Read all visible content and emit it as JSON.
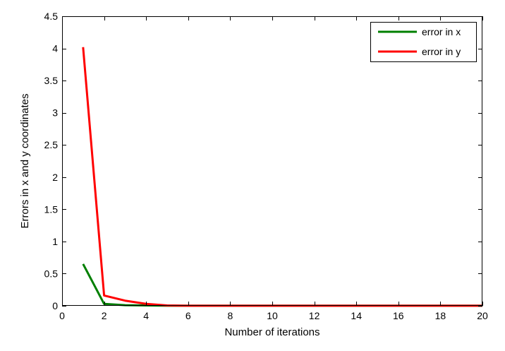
{
  "chart_data": {
    "type": "line",
    "title": "",
    "xlabel": "Number of iterations",
    "ylabel": "Errors in x and y coordinates",
    "xlim": [
      0,
      20
    ],
    "ylim": [
      0,
      4.5
    ],
    "xticks": [
      0,
      2,
      4,
      6,
      8,
      10,
      12,
      14,
      16,
      18,
      20
    ],
    "yticks": [
      0,
      0.5,
      1,
      1.5,
      2,
      2.5,
      3,
      3.5,
      4,
      4.5
    ],
    "xtick_labels": [
      "0",
      "2",
      "4",
      "6",
      "8",
      "10",
      "12",
      "14",
      "16",
      "18",
      "20"
    ],
    "ytick_labels": [
      "0",
      "0.5",
      "1",
      "1.5",
      "2",
      "2.5",
      "3",
      "3.5",
      "4",
      "4.5"
    ],
    "grid": false,
    "legend_position": "top-right",
    "x": [
      1,
      2,
      3,
      4,
      5,
      6,
      7,
      8,
      9,
      10,
      11,
      12,
      13,
      14,
      15,
      16,
      17,
      18,
      19,
      20
    ],
    "series": [
      {
        "name": "error in x",
        "color": "#007f00",
        "values": [
          0.65,
          0.03,
          0.01,
          0.005,
          0.002,
          0.001,
          0.001,
          0.001,
          0.001,
          0.001,
          0.001,
          0.001,
          0.001,
          0.001,
          0.001,
          0.001,
          0.001,
          0.001,
          0.001,
          0.001
        ]
      },
      {
        "name": "error in y",
        "color": "#ff0000",
        "values": [
          4.02,
          0.16,
          0.08,
          0.03,
          0.005,
          0.002,
          0.001,
          0.001,
          0.001,
          0.001,
          0.001,
          0.001,
          0.001,
          0.001,
          0.001,
          0.001,
          0.001,
          0.001,
          0.001,
          0.001
        ]
      }
    ]
  }
}
